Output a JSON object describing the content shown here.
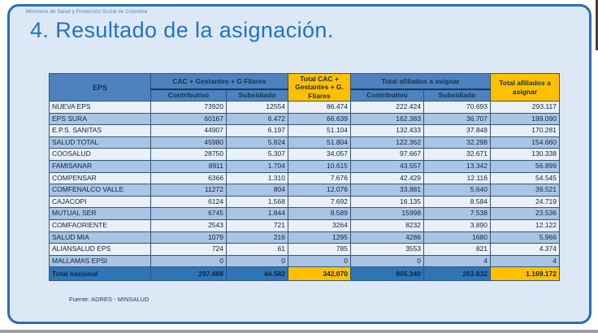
{
  "slide": {
    "ministry_header": "Ministerio de Salud y Protección Social de Colombia",
    "title": "4. Resultado de la asignación.",
    "source_note": "Fuente: ADRES - MINSALUD"
  },
  "colors": {
    "slide_border": "#2a6cb8",
    "slide_bg": "#dce8f6",
    "title_blue": "#2173c2",
    "header_blue": "#4d82be",
    "header_yellow": "#ffc000",
    "row_light": "#e9f0f8",
    "row_dark": "#a9c5e3",
    "total_row_bg": "#2e75b6"
  },
  "table": {
    "columns": {
      "eps": "EPS",
      "group_cac": "CAC +  Gestantes + G Fliares",
      "total_cac": "Total CAC + Gestantes + G. Fliares",
      "group_afiliados": "Total afiliados a asignar",
      "total_afiliados": "Total afiliados a asignar",
      "sub_contributivo": "Contributivo",
      "sub_subsidiado": "Subsidiado"
    },
    "rows": [
      [
        "NUEVA EPS",
        "73920",
        "12554",
        "86.474",
        "222.424",
        "70.693",
        "293.117"
      ],
      [
        "EPS SURA",
        "60167",
        "6.472",
        "66.639",
        "162.383",
        "36.707",
        "199.090"
      ],
      [
        "E.P.S. SANITAS",
        "44907",
        "6.197",
        "51.104",
        "132.433",
        "37.848",
        "170.281"
      ],
      [
        "SALUD TOTAL",
        "45980",
        "5.824",
        "51.804",
        "122.362",
        "32.298",
        "154.660"
      ],
      [
        "COOSALUD",
        "28750",
        "5.307",
        "34.057",
        "97.667",
        "32.671",
        "130.338"
      ],
      [
        "FAMISANAR",
        "8911",
        "1.704",
        "10.615",
        "43.557",
        "13.342",
        "56.899"
      ],
      [
        "COMPENSAR",
        "6366",
        "1.310",
        "7.676",
        "42.429",
        "12.116",
        "54.545"
      ],
      [
        "COMFENALCO VALLE",
        "11272",
        "804",
        "12.076",
        "33.881",
        "5.640",
        "39.521"
      ],
      [
        "CAJACOPI",
        "6124",
        "1.568",
        "7.692",
        "16.135",
        "8.584",
        "24.719"
      ],
      [
        "MUTUAL SER",
        "6745",
        "1.844",
        "8.589",
        "15998",
        "7.538",
        "23.536"
      ],
      [
        "COMFAORIENTE",
        "2543",
        "721",
        "3264",
        "8232",
        "3.890",
        "12.122"
      ],
      [
        "SALUD MIA",
        "1079",
        "216",
        "1295",
        "4286",
        "1680",
        "5.966"
      ],
      [
        "ALIANSALUD EPS",
        "724",
        "61",
        "785",
        "3553",
        "821",
        "4.374"
      ],
      [
        "MALLAMAS EPSI",
        "0",
        "0",
        "0",
        "0",
        "4",
        "4"
      ]
    ],
    "total_row": [
      "Total nacional",
      "297.488",
      "44.582",
      "342.070",
      "905.340",
      "263.832",
      "1.169.172"
    ]
  }
}
